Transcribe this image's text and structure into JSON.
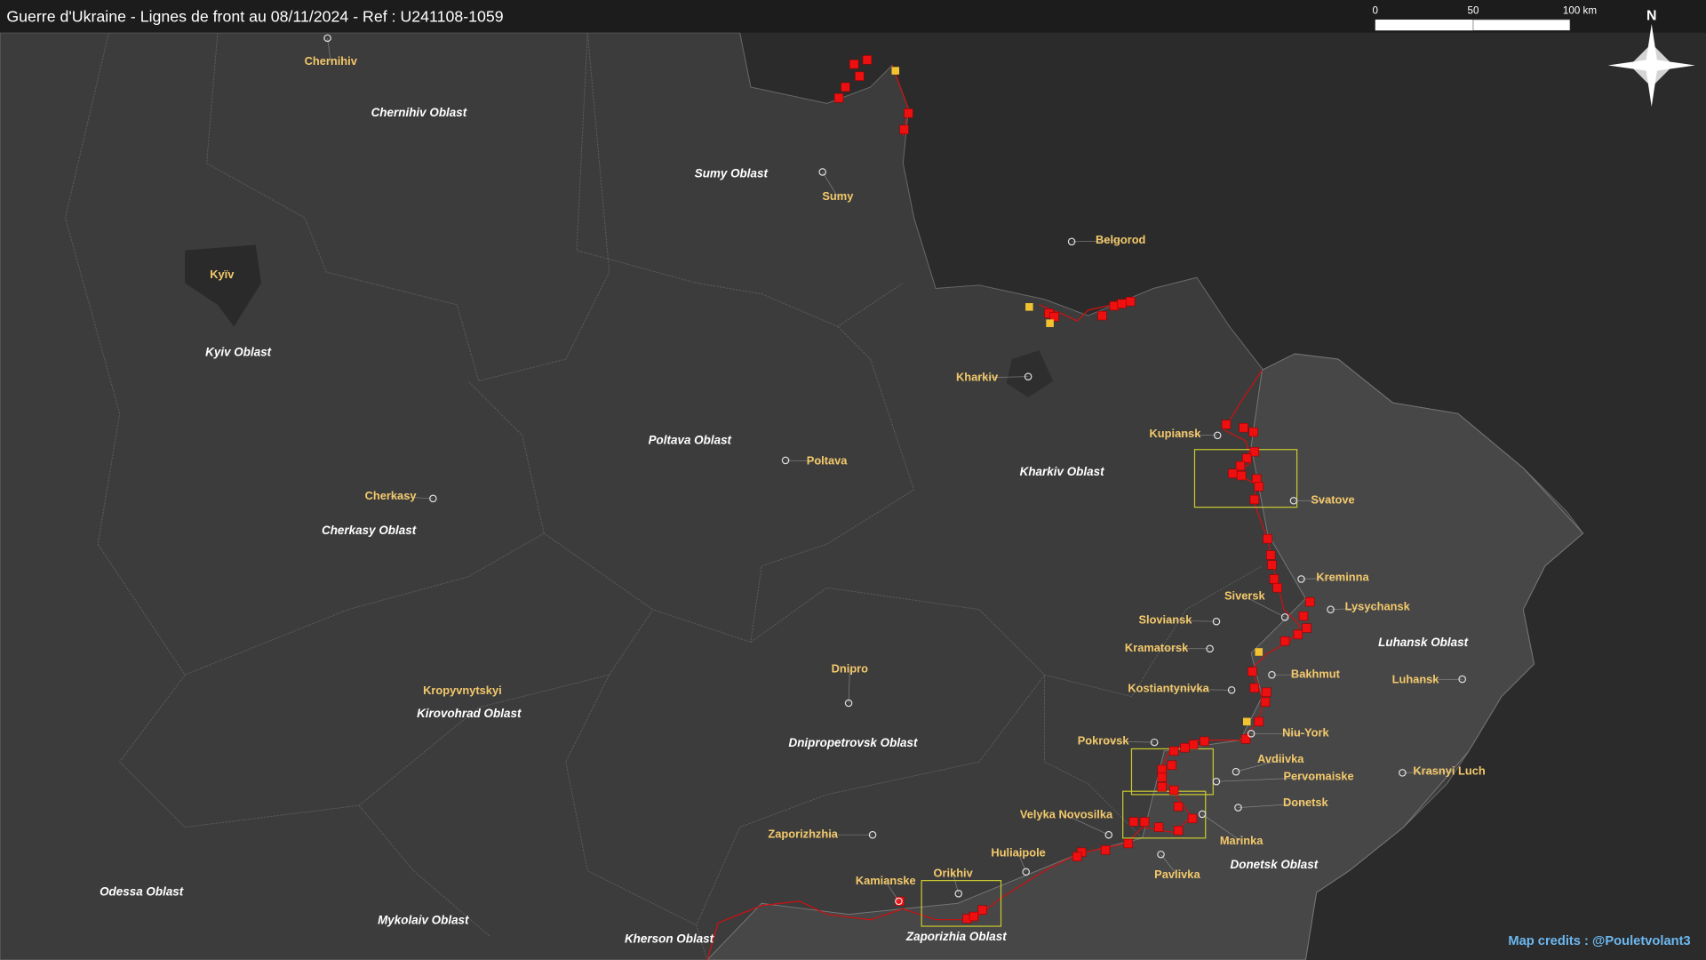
{
  "header": {
    "title": "Guerre d'Ukraine - Lignes de front au 08/11/2024 - Ref : U241108-1059"
  },
  "scale_bar": {
    "labels": [
      "0",
      "50",
      "100 km"
    ]
  },
  "compass": {
    "label": "N"
  },
  "oblasts": [
    {
      "name": "Chernihiv Oblast"
    },
    {
      "name": "Sumy Oblast"
    },
    {
      "name": "Kyiv Oblast"
    },
    {
      "name": "Poltava Oblast"
    },
    {
      "name": "Kharkiv Oblast"
    },
    {
      "name": "Cherkasy Oblast"
    },
    {
      "name": "Luhansk Oblast"
    },
    {
      "name": "Kirovohrad Oblast"
    },
    {
      "name": "Dnipropetrovsk Oblast"
    },
    {
      "name": "Donetsk Oblast"
    },
    {
      "name": "Odessa Oblast"
    },
    {
      "name": "Mykolaiv Oblast"
    },
    {
      "name": "Kherson Oblast"
    },
    {
      "name": "Zaporizhia Oblast"
    }
  ],
  "cities": [
    {
      "name": "Chernihiv"
    },
    {
      "name": "Sumy"
    },
    {
      "name": "Belgorod"
    },
    {
      "name": "Kyïv"
    },
    {
      "name": "Kharkiv"
    },
    {
      "name": "Poltava"
    },
    {
      "name": "Cherkasy"
    },
    {
      "name": "Kupiansk"
    },
    {
      "name": "Svatove"
    },
    {
      "name": "Kreminna"
    },
    {
      "name": "Siversk"
    },
    {
      "name": "Lysychansk"
    },
    {
      "name": "Sloviansk"
    },
    {
      "name": "Kramatorsk"
    },
    {
      "name": "Bakhmut"
    },
    {
      "name": "Kostiantynivka"
    },
    {
      "name": "Luhansk"
    },
    {
      "name": "Niu-York"
    },
    {
      "name": "Pokrovsk"
    },
    {
      "name": "Avdiivka"
    },
    {
      "name": "Pervomaiske"
    },
    {
      "name": "Krasnyi Luch"
    },
    {
      "name": "Donetsk"
    },
    {
      "name": "Velyka Novosilka"
    },
    {
      "name": "Marinka"
    },
    {
      "name": "Pavlivka"
    },
    {
      "name": "Huliaipole"
    },
    {
      "name": "Zaporizhzhia"
    },
    {
      "name": "Dnipro"
    },
    {
      "name": "Kropyvnytskyi"
    },
    {
      "name": "Kamianske"
    },
    {
      "name": "Orikhiv"
    }
  ],
  "credits": "Map credits : @Pouletvolant3"
}
